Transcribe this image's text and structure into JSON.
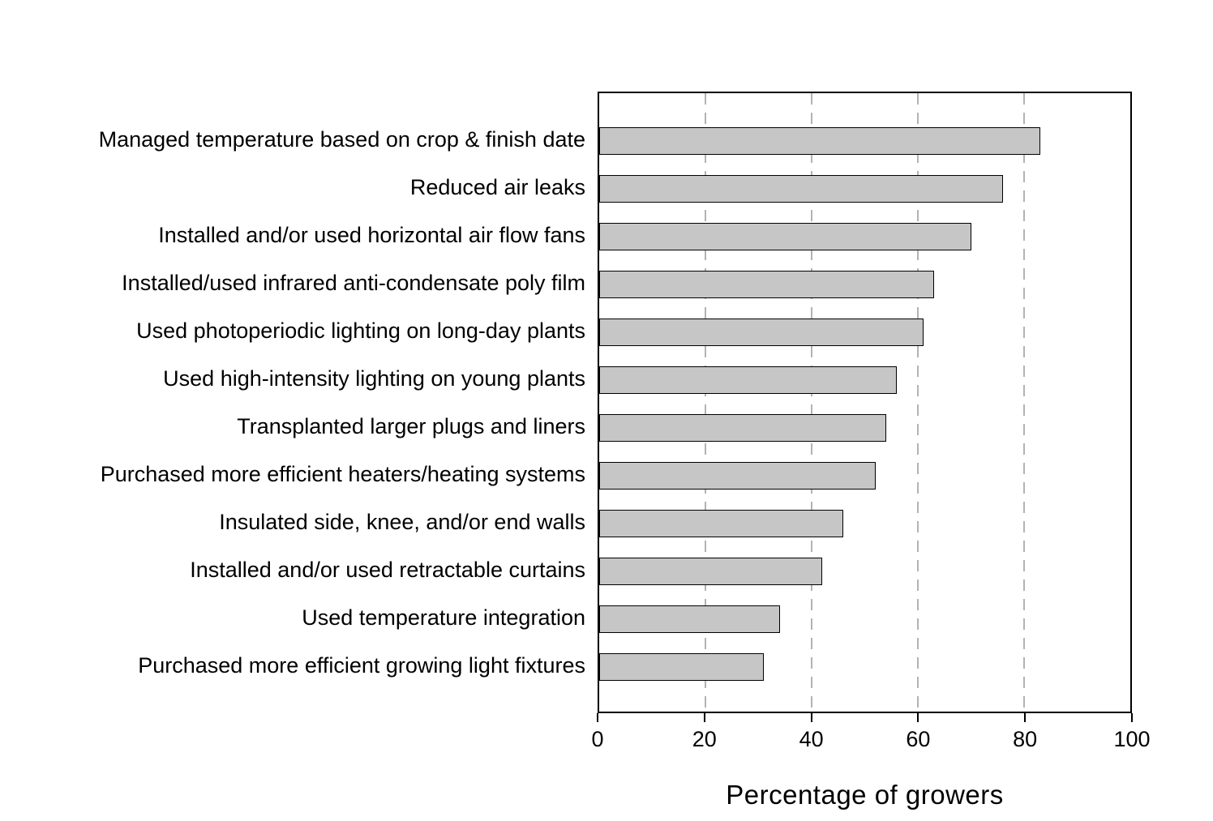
{
  "chart_data": {
    "type": "bar",
    "orientation": "horizontal",
    "title": "",
    "xlabel": "Percentage of growers",
    "ylabel": "",
    "xlim": [
      0,
      100
    ],
    "xticks": [
      0,
      20,
      40,
      60,
      80,
      100
    ],
    "gridlines": {
      "x": [
        20,
        40,
        60,
        80
      ],
      "style": "dashed",
      "color": "#b3b3b3"
    },
    "legend": "none",
    "bar_color": "#c6c6c6",
    "bar_border_color": "#000000",
    "categories": [
      "Managed temperature based on crop & finish date",
      "Reduced air leaks",
      "Installed and/or used horizontal air flow fans",
      "Installed/used infrared anti-condensate poly film",
      "Used photoperiodic lighting on long-day plants",
      "Used high-intensity lighting on young plants",
      "Transplanted larger plugs and liners",
      "Purchased more efficient heaters/heating systems",
      "Insulated side, knee, and/or end walls",
      "Installed and/or used retractable curtains",
      "Used temperature integration",
      "Purchased more efficient growing light fixtures"
    ],
    "values": [
      83,
      76,
      70,
      63,
      61,
      56,
      54,
      52,
      46,
      42,
      34,
      31
    ]
  }
}
